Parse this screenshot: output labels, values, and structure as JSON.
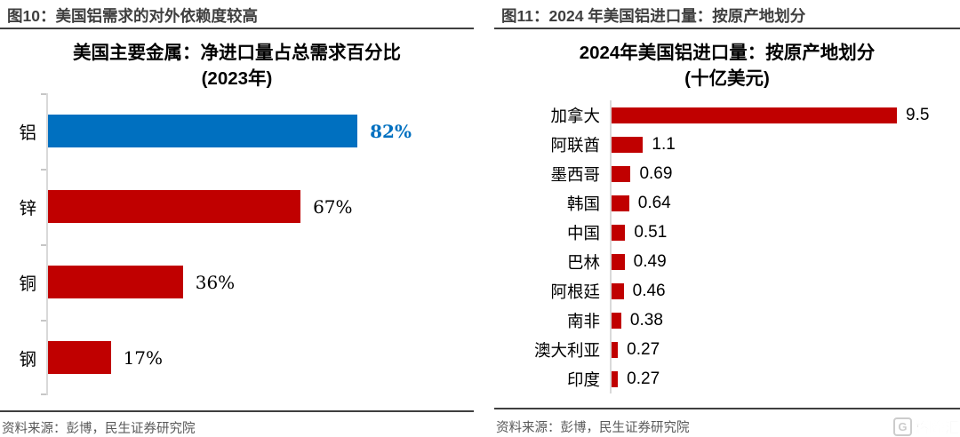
{
  "panels": [
    {
      "caption": "图10：美国铝需求的对外依赖度较高",
      "source": "资料来源：彭博，民生证券研究院"
    },
    {
      "caption": "图11：2024 年美国铝进口量：按原产地划分",
      "source": "资料来源：彭博，民生证券研究院"
    }
  ],
  "chart_data": [
    {
      "type": "bar",
      "orientation": "horizontal",
      "title": "美国主要金属：净进口量占总需求百分比",
      "subtitle": "(2023年)",
      "categories": [
        "铝",
        "锌",
        "铜",
        "钢"
      ],
      "values": [
        82,
        67,
        36,
        17
      ],
      "value_labels": [
        "82%",
        "67%",
        "36%",
        "17%"
      ],
      "bar_colors": [
        "#0070C0",
        "#C00000",
        "#C00000",
        "#C00000"
      ],
      "value_label_colors": [
        "#0070C0",
        "#000000",
        "#000000",
        "#000000"
      ],
      "value_label_bold": [
        true,
        false,
        false,
        false
      ],
      "xlabel": "",
      "ylabel": "",
      "xlim": [
        0,
        100
      ],
      "unit": "%",
      "grid": false,
      "legend": "none"
    },
    {
      "type": "bar",
      "orientation": "horizontal",
      "title": "2024年美国铝进口量：按原产地划分",
      "subtitle": "(十亿美元)",
      "categories": [
        "加拿大",
        "阿联酋",
        "墨西哥",
        "韩国",
        "中国",
        "巴林",
        "阿根廷",
        "南非",
        "澳大利亚",
        "印度"
      ],
      "values": [
        9.5,
        1.1,
        0.69,
        0.64,
        0.51,
        0.49,
        0.46,
        0.38,
        0.27,
        0.27
      ],
      "value_labels": [
        "9.5",
        "1.1",
        "0.69",
        "0.64",
        "0.51",
        "0.49",
        "0.46",
        "0.38",
        "0.27",
        "0.27"
      ],
      "bar_colors": [
        "#C00000",
        "#C00000",
        "#C00000",
        "#C00000",
        "#C00000",
        "#C00000",
        "#C00000",
        "#C00000",
        "#C00000",
        "#C00000"
      ],
      "value_label_colors": [
        "#000000",
        "#000000",
        "#000000",
        "#000000",
        "#000000",
        "#000000",
        "#000000",
        "#000000",
        "#000000",
        "#000000"
      ],
      "value_label_bold": [
        false,
        false,
        false,
        false,
        false,
        false,
        false,
        false,
        false,
        false
      ],
      "xlabel": "",
      "ylabel": "",
      "xlim": [
        0,
        10
      ],
      "unit": "十亿美元",
      "grid": false,
      "legend": "none"
    }
  ],
  "colors": {
    "accent_blue": "#0070C0",
    "accent_red": "#C00000",
    "rule": "#3F3F3F",
    "axis": "#D9D9D9",
    "source_text": "#595959",
    "caption_text": "#3F3F3F"
  },
  "watermark": {
    "icon": "G",
    "text": "格隆汇"
  }
}
